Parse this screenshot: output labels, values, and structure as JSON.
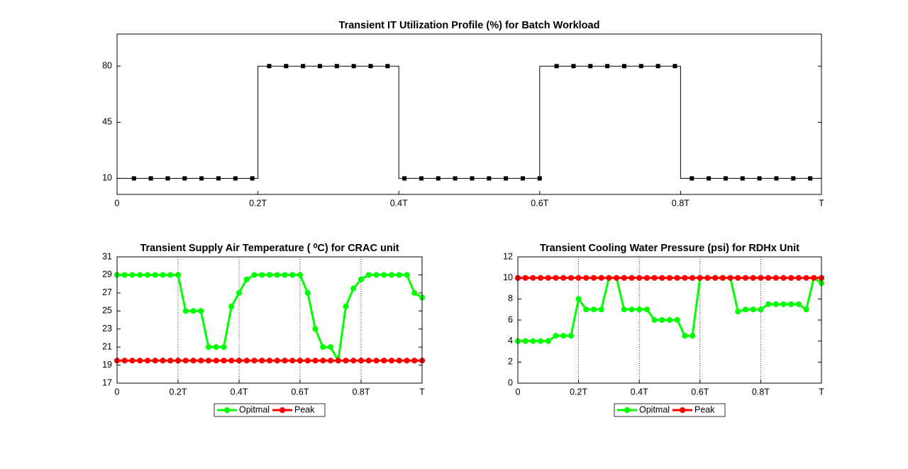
{
  "chart_data": [
    {
      "type": "line",
      "title": "Transient IT Utilization Profile (%) for Batch Workload",
      "xlim": [
        0,
        1
      ],
      "xticks": [
        0,
        {
          "value": 0.2,
          "label": "0.2T"
        },
        {
          "value": 0.4,
          "label": "0.4T"
        },
        {
          "value": 0.6,
          "label": "0.6T"
        },
        {
          "value": 0.8,
          "label": "0.8T"
        },
        {
          "value": 1,
          "label": "T"
        }
      ],
      "ylim": [
        0,
        100
      ],
      "yticks": [
        10,
        45,
        80
      ],
      "grid": false,
      "series": [
        {
          "color": "#000000",
          "marker": "none",
          "x": [
            0,
            0.2,
            0.2,
            0.4,
            0.4,
            0.6,
            0.6,
            0.8,
            0.8,
            1
          ],
          "values": [
            10,
            10,
            80,
            80,
            10,
            10,
            80,
            80,
            10,
            10
          ]
        },
        {
          "color": "#000000",
          "marker": "square",
          "linestyle": "none",
          "x": [
            0.024,
            0.048,
            0.072,
            0.096,
            0.12,
            0.144,
            0.168,
            0.192,
            0.216,
            0.24,
            0.264,
            0.288,
            0.312,
            0.336,
            0.36,
            0.384,
            0.408,
            0.432,
            0.456,
            0.48,
            0.504,
            0.528,
            0.552,
            0.576,
            0.6,
            0.624,
            0.648,
            0.672,
            0.696,
            0.72,
            0.744,
            0.768,
            0.792,
            0.816,
            0.84,
            0.864,
            0.888,
            0.912,
            0.936,
            0.96,
            0.984
          ],
          "values": [
            10,
            10,
            10,
            10,
            10,
            10,
            10,
            10,
            80,
            80,
            80,
            80,
            80,
            80,
            80,
            80,
            10,
            10,
            10,
            10,
            10,
            10,
            10,
            10,
            10,
            80,
            80,
            80,
            80,
            80,
            80,
            80,
            80,
            10,
            10,
            10,
            10,
            10,
            10,
            10,
            10
          ]
        }
      ]
    },
    {
      "type": "line",
      "title": "Transient Supply Air Temperature ( ⁰C) for CRAC unit",
      "x": [
        0,
        0.025,
        0.05,
        0.075,
        0.1,
        0.125,
        0.15,
        0.175,
        0.2,
        0.225,
        0.25,
        0.275,
        0.3,
        0.325,
        0.35,
        0.375,
        0.4,
        0.425,
        0.45,
        0.475,
        0.5,
        0.525,
        0.55,
        0.575,
        0.6,
        0.625,
        0.65,
        0.675,
        0.7,
        0.725,
        0.75,
        0.775,
        0.8,
        0.825,
        0.85,
        0.875,
        0.9,
        0.925,
        0.95,
        0.975,
        1
      ],
      "xlim": [
        0,
        1
      ],
      "xticks": [
        0,
        {
          "value": 0.2,
          "label": "0.2T"
        },
        {
          "value": 0.4,
          "label": "0.4T"
        },
        {
          "value": 0.6,
          "label": "0.6T"
        },
        {
          "value": 0.8,
          "label": "0.8T"
        },
        {
          "value": 1,
          "label": "T"
        }
      ],
      "ylim": [
        17,
        31
      ],
      "yticks": [
        17,
        19,
        21,
        23,
        25,
        27,
        29,
        31
      ],
      "grid": "x",
      "legend": "bottom",
      "series": [
        {
          "name": "Opitmal",
          "color": "#00ff00",
          "marker": "star",
          "values": [
            29,
            29,
            29,
            29,
            29,
            29,
            29,
            29,
            29,
            25,
            25,
            25,
            21,
            21,
            21,
            25.5,
            27,
            28.5,
            29,
            29,
            29,
            29,
            29,
            29,
            29,
            27,
            23,
            21,
            21,
            19.5,
            25.5,
            27.5,
            28.5,
            29,
            29,
            29,
            29,
            29,
            29,
            27,
            26.5
          ]
        },
        {
          "name": "Peak",
          "color": "#ff0000",
          "marker": "star",
          "values": [
            19.5,
            19.5,
            19.5,
            19.5,
            19.5,
            19.5,
            19.5,
            19.5,
            19.5,
            19.5,
            19.5,
            19.5,
            19.5,
            19.5,
            19.5,
            19.5,
            19.5,
            19.5,
            19.5,
            19.5,
            19.5,
            19.5,
            19.5,
            19.5,
            19.5,
            19.5,
            19.5,
            19.5,
            19.5,
            19.5,
            19.5,
            19.5,
            19.5,
            19.5,
            19.5,
            19.5,
            19.5,
            19.5,
            19.5,
            19.5,
            19.5
          ]
        }
      ]
    },
    {
      "type": "line",
      "title": "Transient Cooling Water Pressure (psi) for RDHx Unit",
      "x": [
        0,
        0.025,
        0.05,
        0.075,
        0.1,
        0.125,
        0.15,
        0.175,
        0.2,
        0.225,
        0.25,
        0.275,
        0.3,
        0.325,
        0.35,
        0.375,
        0.4,
        0.425,
        0.45,
        0.475,
        0.5,
        0.525,
        0.55,
        0.575,
        0.6,
        0.625,
        0.65,
        0.675,
        0.7,
        0.725,
        0.75,
        0.775,
        0.8,
        0.825,
        0.85,
        0.875,
        0.9,
        0.925,
        0.95,
        0.975,
        1
      ],
      "xlim": [
        0,
        1
      ],
      "xticks": [
        0,
        {
          "value": 0.2,
          "label": "0.2T"
        },
        {
          "value": 0.4,
          "label": "0.4T"
        },
        {
          "value": 0.6,
          "label": "0.6T"
        },
        {
          "value": 0.8,
          "label": "0.8T"
        },
        {
          "value": 1,
          "label": "T"
        }
      ],
      "ylim": [
        0,
        12
      ],
      "yticks": [
        0,
        2,
        4,
        6,
        8,
        10,
        12
      ],
      "grid": "x",
      "legend": "bottom",
      "series": [
        {
          "name": "Opitmal",
          "color": "#00ff00",
          "marker": "star",
          "values": [
            4,
            4,
            4,
            4,
            4,
            4.5,
            4.5,
            4.5,
            8,
            7,
            7,
            7,
            10,
            10,
            7,
            7,
            7,
            7,
            6,
            6,
            6,
            6,
            4.5,
            4.5,
            10,
            10,
            10,
            10,
            10,
            6.8,
            7,
            7,
            7,
            7.5,
            7.5,
            7.5,
            7.5,
            7.5,
            7,
            10,
            9.5
          ]
        },
        {
          "name": "Peak",
          "color": "#ff0000",
          "marker": "star",
          "values": [
            10,
            10,
            10,
            10,
            10,
            10,
            10,
            10,
            10,
            10,
            10,
            10,
            10,
            10,
            10,
            10,
            10,
            10,
            10,
            10,
            10,
            10,
            10,
            10,
            10,
            10,
            10,
            10,
            10,
            10,
            10,
            10,
            10,
            10,
            10,
            10,
            10,
            10,
            10,
            10,
            10
          ]
        }
      ]
    }
  ]
}
